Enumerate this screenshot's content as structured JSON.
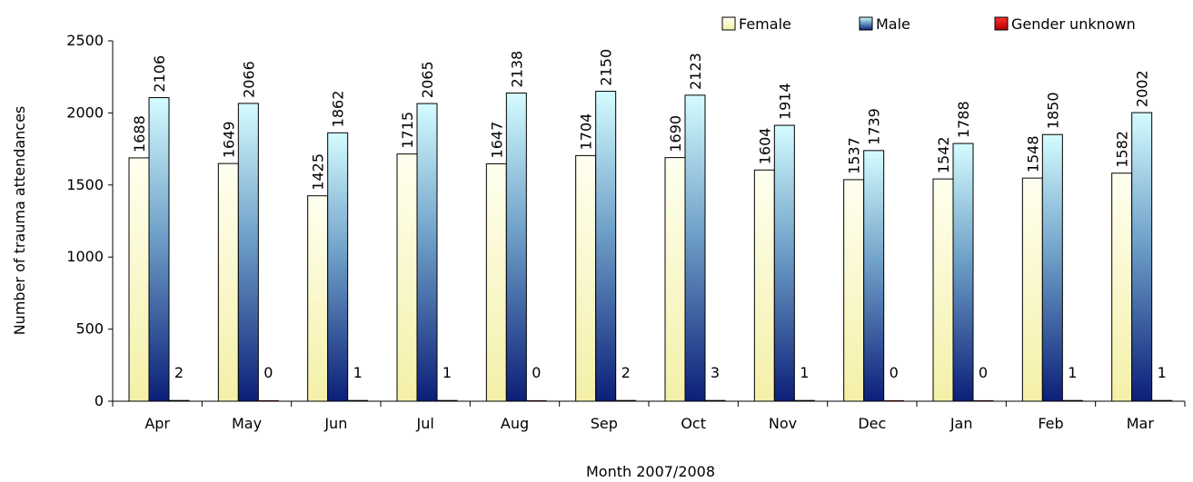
{
  "chart_data": {
    "type": "bar",
    "xlabel": "Month 2007/2008",
    "ylabel": "Number of trauma attendances",
    "ylim": [
      0,
      2500
    ],
    "yticks": [
      0,
      500,
      1000,
      1500,
      2000,
      2500
    ],
    "grid": false,
    "legend_position": "top-right",
    "categories": [
      "Apr",
      "May",
      "Jun",
      "Jul",
      "Aug",
      "Sep",
      "Oct",
      "Nov",
      "Dec",
      "Jan",
      "Feb",
      "Mar"
    ],
    "series": [
      {
        "name": "Female",
        "color": "#fffcc8",
        "values": [
          1688,
          1649,
          1425,
          1715,
          1647,
          1704,
          1690,
          1604,
          1537,
          1542,
          1548,
          1582
        ]
      },
      {
        "name": "Male",
        "color": "#c8faff",
        "values": [
          2106,
          2066,
          1862,
          2065,
          2138,
          2150,
          2123,
          1914,
          1739,
          1788,
          1850,
          2002
        ]
      },
      {
        "name": "Gender unknown",
        "color": "#e00000",
        "values": [
          2,
          0,
          1,
          1,
          0,
          2,
          3,
          1,
          0,
          0,
          1,
          1
        ]
      }
    ]
  }
}
